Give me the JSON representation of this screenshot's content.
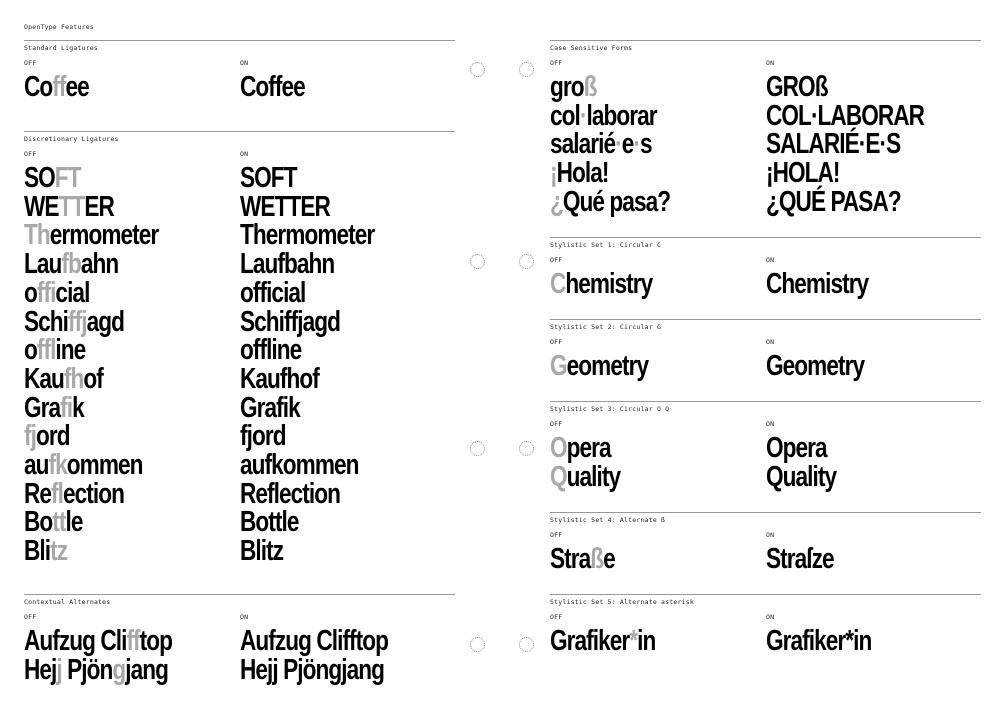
{
  "title": "OpenType Features",
  "off_label": "OFF",
  "on_label": "ON",
  "highlight_color": "#a8a8a8",
  "sections": [
    {
      "id": "liga",
      "label": "Standard Ligatures",
      "off": [
        [
          "Co",
          "ff",
          "ee"
        ]
      ],
      "on": [
        "Coffee"
      ]
    },
    {
      "id": "dlig",
      "label": "Discretionary Ligatures",
      "off": [
        [
          "SO",
          "FT"
        ],
        [
          "WE",
          "TT",
          "ER"
        ],
        [
          "",
          "Th",
          "ermometer"
        ],
        [
          "Lau",
          "fb",
          "ahn"
        ],
        [
          "o",
          "ffi",
          "cial"
        ],
        [
          "Schi",
          "ffj",
          "agd"
        ],
        [
          "o",
          "ffl",
          "ine"
        ],
        [
          "Kau",
          "fh",
          "of"
        ],
        [
          "Gra",
          "fi",
          "k"
        ],
        [
          "",
          "fj",
          "ord"
        ],
        [
          "au",
          "fk",
          "ommen"
        ],
        [
          "Re",
          "fl",
          "ection"
        ],
        [
          "Bo",
          "tt",
          "le"
        ],
        [
          "Bli",
          "tz"
        ]
      ],
      "on": [
        "SOFT",
        "WETTER",
        "Thermometer",
        "Laufbahn",
        "official",
        "Schiffjagd",
        "offline",
        "Kaufhof",
        "Grafik",
        "fjord",
        "aufkommen",
        "Reflection",
        "Bottle",
        "Blitz"
      ]
    },
    {
      "id": "calt",
      "label": "Contextual Alternates",
      "off": [
        [
          "Aufzug  Cli",
          "ff",
          "top"
        ],
        [
          "Hej",
          "j",
          "  Pjön",
          "g",
          "jang"
        ]
      ],
      "on": [
        "Aufzug  Clifftop",
        "Hejj  Pjöngjang"
      ]
    },
    {
      "id": "case",
      "label": "Case Sensitive Forms",
      "off": [
        [
          "gro",
          "ß"
        ],
        [
          "col",
          "·",
          "laborar"
        ],
        [
          "salarié",
          "·",
          "e",
          "·",
          "s"
        ],
        [
          "",
          "¡",
          "Hola!"
        ],
        [
          "",
          "¿",
          "Qué pasa?"
        ]
      ],
      "on": [
        "GROß",
        "COL·LABORAR",
        "SALARIÉ·E·S",
        "¡HOLA!",
        "¿QUÉ PASA?"
      ]
    },
    {
      "id": "ss01",
      "label": "Stylistic Set 1: Circular C",
      "off": [
        [
          "",
          "C",
          "hemistry"
        ]
      ],
      "on": [
        "Chemistry"
      ]
    },
    {
      "id": "ss02",
      "label": "Stylistic Set 2: Circular G",
      "off": [
        [
          "",
          "G",
          "eometry"
        ]
      ],
      "on": [
        "Geometry"
      ]
    },
    {
      "id": "ss03",
      "label": "Stylistic Set 3: Circular O Q",
      "off": [
        [
          "",
          "O",
          "pera"
        ],
        [
          "",
          "Q",
          "uality"
        ]
      ],
      "on": [
        "Opera",
        "Quality"
      ]
    },
    {
      "id": "ss04",
      "label": "Stylistic Set 4: Alternate ß",
      "off": [
        [
          "Stra",
          "ß",
          "e"
        ]
      ],
      "on": [
        "Straſze"
      ]
    },
    {
      "id": "ss05",
      "label": "Stylistic Set 5: Alternate asterisk",
      "off": [
        [
          "Grafiker",
          "*",
          "in"
        ]
      ],
      "on": [
        "Grafiker*in"
      ]
    }
  ]
}
